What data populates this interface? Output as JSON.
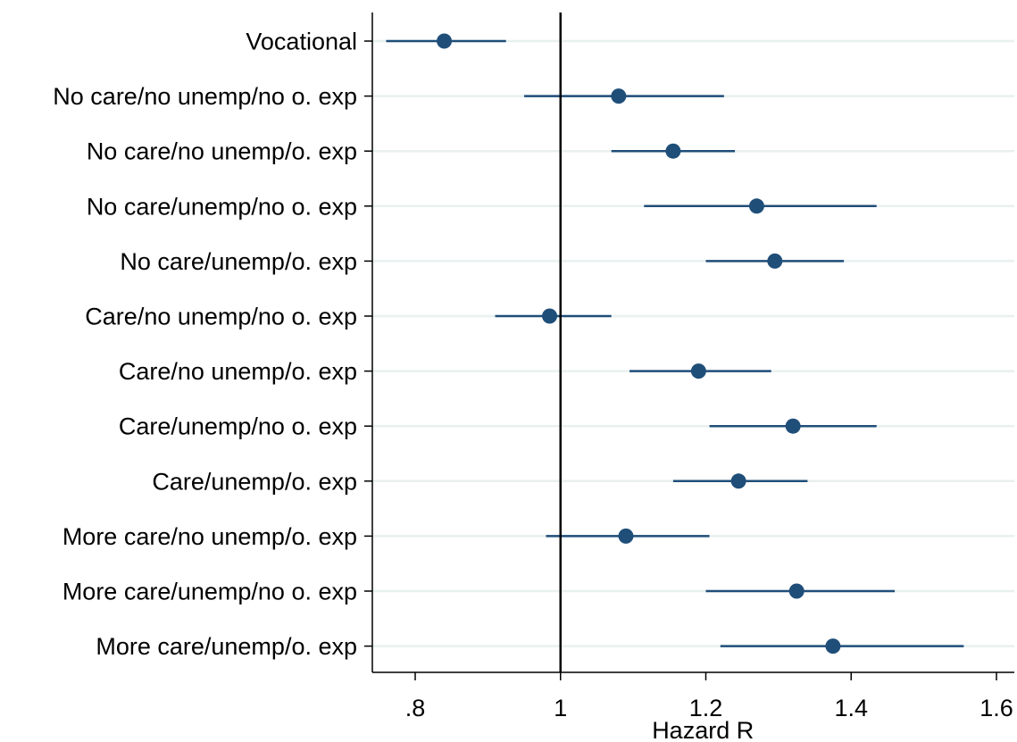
{
  "chart_data": {
    "type": "scatter",
    "subtype": "coefficient-plot-with-confidence-intervals",
    "xlabel": "Hazard R",
    "ylabel": "",
    "xlim": [
      0.75,
      1.61
    ],
    "xticks": [
      0.8,
      1.0,
      1.2,
      1.4,
      1.6
    ],
    "xtick_labels": [
      ".8",
      "1",
      "1.2",
      "1.4",
      "1.6"
    ],
    "reference_line": 1.0,
    "grid": "horizontal",
    "colors": {
      "marker": "#1f4e79",
      "ci": "#1f4e79",
      "grid": "#e8f0f0",
      "axis": "#000000"
    },
    "categories": [
      "Vocational",
      "No care/no unemp/no o. exp",
      "No care/no unemp/o. exp",
      "No care/unemp/no o. exp",
      "No care/unemp/o. exp",
      "Care/no unemp/no o. exp",
      "Care/no unemp/o. exp",
      "Care/unemp/no o. exp",
      "Care/unemp/o. exp",
      "More care/no unemp/o. exp",
      "More care/unemp/no o. exp",
      "More care/unemp/o. exp"
    ],
    "estimates": [
      0.84,
      1.08,
      1.155,
      1.27,
      1.295,
      0.985,
      1.19,
      1.32,
      1.245,
      1.09,
      1.325,
      1.375
    ],
    "ci_low": [
      0.76,
      0.95,
      1.07,
      1.115,
      1.2,
      0.91,
      1.095,
      1.205,
      1.155,
      0.98,
      1.2,
      1.22
    ],
    "ci_high": [
      0.925,
      1.225,
      1.24,
      1.435,
      1.39,
      1.07,
      1.29,
      1.435,
      1.34,
      1.205,
      1.46,
      1.555
    ]
  }
}
